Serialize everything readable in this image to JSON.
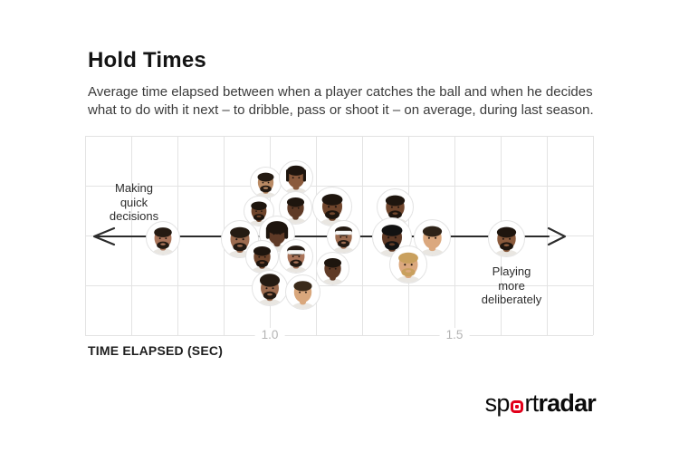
{
  "header": {
    "title": "Hold Times",
    "subtitle_lines": [
      "Average time elapsed between when a player catches the ball and when he decides",
      "what to do with it next – to dribble, pass or shoot it – on average, during last season."
    ]
  },
  "annotations": {
    "left": [
      "Making",
      "quick",
      "decisions"
    ],
    "right": [
      "Playing",
      "more",
      "deliberately"
    ]
  },
  "axis": {
    "label": "TIME ELAPSED (SEC)",
    "ticks": [
      "1.0",
      "1.5"
    ]
  },
  "branding": {
    "prefix": "sp",
    "mid": "rt",
    "suffix": "radar",
    "accent_color": "#e2001a"
  },
  "theme": {
    "background": "#ffffff",
    "grid_color": "#e3e3e3",
    "arrow_color": "#2b2b2b",
    "tick_color": "#b4b4b4",
    "avatar_ring_color": "#e3e3e3"
  },
  "chart_data": {
    "type": "scatter",
    "title": "Hold Times",
    "xlabel": "TIME ELAPSED (SEC)",
    "x_unit": "seconds",
    "x_ticks": [
      1.0,
      1.5
    ],
    "xlim": [
      0.5,
      1.875
    ],
    "x_gridline_interval": 0.125,
    "grid": true,
    "legend": "none",
    "note": "Each point is an NBA player head-shot avatar (no name labels shown); dy is the beeswarm vertical offset in px from the arrow axis, d is avatar diameter in px.",
    "points": [
      {
        "id": "player-1",
        "t": 0.71,
        "dy": 2,
        "d": 38,
        "skin": "#a9745a",
        "hair": "#241a12",
        "style": "short",
        "beard": true,
        "headband": false
      },
      {
        "id": "player-2",
        "t": 0.92,
        "dy": 3,
        "d": 42,
        "skin": "#9c6b4f",
        "hair": "#241a12",
        "style": "short",
        "beard": true,
        "headband": false
      },
      {
        "id": "player-3",
        "t": 0.99,
        "dy": -60,
        "d": 35,
        "skin": "#b98a64",
        "hair": "#241a12",
        "style": "short",
        "beard": true,
        "headband": false
      },
      {
        "id": "player-4",
        "t": 1.07,
        "dy": -65,
        "d": 38,
        "skin": "#8a5a3c",
        "hair": "#1e150e",
        "style": "braids",
        "beard": false,
        "headband": false
      },
      {
        "id": "player-5",
        "t": 0.97,
        "dy": -28,
        "d": 34,
        "skin": "#6f452c",
        "hair": "#1e150e",
        "style": "short",
        "beard": true,
        "headband": false
      },
      {
        "id": "player-6",
        "t": 1.07,
        "dy": -32,
        "d": 37,
        "skin": "#5f3a26",
        "hair": "#1e150e",
        "style": "short",
        "beard": false,
        "headband": false
      },
      {
        "id": "player-7",
        "t": 1.17,
        "dy": -33,
        "d": 44,
        "skin": "#6f452c",
        "hair": "#1e150e",
        "style": "short",
        "beard": true,
        "headband": false
      },
      {
        "id": "player-8",
        "t": 1.02,
        "dy": -3,
        "d": 40,
        "skin": "#5f3a26",
        "hair": "#1e150e",
        "style": "dreads",
        "beard": false,
        "headband": false
      },
      {
        "id": "player-9",
        "t": 1.2,
        "dy": 0,
        "d": 37,
        "skin": "#9c6b4f",
        "hair": "#241a12",
        "style": "short",
        "beard": true,
        "headband": true
      },
      {
        "id": "player-10",
        "t": 0.98,
        "dy": 22,
        "d": 37,
        "skin": "#6f452c",
        "hair": "#1e150e",
        "style": "short",
        "beard": true,
        "headband": false
      },
      {
        "id": "player-11",
        "t": 1.07,
        "dy": 22,
        "d": 38,
        "skin": "#a9745a",
        "hair": "#241a12",
        "style": "short",
        "beard": true,
        "headband": true
      },
      {
        "id": "player-12",
        "t": 1.17,
        "dy": 35,
        "d": 37,
        "skin": "#5f3a26",
        "hair": "#1e150e",
        "style": "short",
        "beard": false,
        "headband": false
      },
      {
        "id": "player-13",
        "t": 1.0,
        "dy": 57,
        "d": 40,
        "skin": "#9c6b4f",
        "hair": "#241a12",
        "style": "curly",
        "beard": true,
        "headband": false
      },
      {
        "id": "player-14",
        "t": 1.09,
        "dy": 61,
        "d": 39,
        "skin": "#d9a77c",
        "hair": "#3a2a1a",
        "style": "short",
        "beard": false,
        "headband": false
      },
      {
        "id": "player-15",
        "t": 1.34,
        "dy": -33,
        "d": 41,
        "skin": "#6f452c",
        "hair": "#1e150e",
        "style": "short",
        "beard": true,
        "headband": false
      },
      {
        "id": "player-16",
        "t": 1.33,
        "dy": 1,
        "d": 44,
        "skin": "#5f3a26",
        "hair": "#121212",
        "style": "short",
        "beard": true,
        "headband": false
      },
      {
        "id": "player-17",
        "t": 1.44,
        "dy": 1,
        "d": 41,
        "skin": "#dba87e",
        "hair": "#2e2318",
        "style": "short",
        "beard": false,
        "headband": false
      },
      {
        "id": "player-18",
        "t": 1.375,
        "dy": 31,
        "d": 42,
        "skin": "#dba87e",
        "hair": "#c9a05e",
        "style": "short",
        "beard": true,
        "headband": false
      },
      {
        "id": "player-19",
        "t": 1.64,
        "dy": 2,
        "d": 41,
        "skin": "#8a5a3c",
        "hair": "#1e150e",
        "style": "short",
        "beard": true,
        "headband": false
      }
    ]
  }
}
